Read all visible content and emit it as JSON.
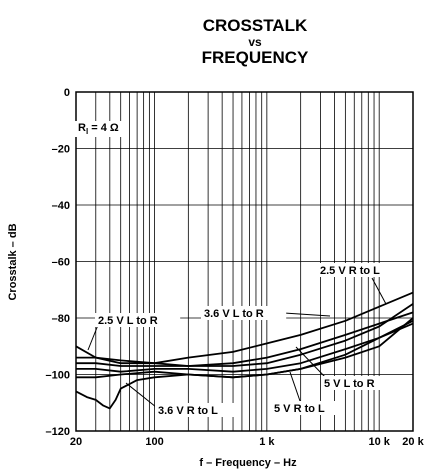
{
  "chart_data": {
    "type": "line",
    "title_lines": [
      "CROSSTALK",
      "vs",
      "FREQUENCY"
    ],
    "xlabel": "f – Frequency – Hz",
    "ylabel": "Crosstalk – dB",
    "x_scale": "log",
    "xlim": [
      20,
      20000
    ],
    "ylim": [
      -120,
      0
    ],
    "grid": true,
    "x_tick_labels": [
      {
        "value": 20,
        "label": "20"
      },
      {
        "value": 100,
        "label": "100"
      },
      {
        "value": 1000,
        "label": "1 k"
      },
      {
        "value": 10000,
        "label": "10 k"
      },
      {
        "value": 20000,
        "label": "20 k"
      }
    ],
    "y_ticks": [
      0,
      -20,
      -40,
      -60,
      -80,
      -100,
      -120
    ],
    "y_tick_labels": [
      "0",
      "–20",
      "–40",
      "–60",
      "–80",
      "–100",
      "–120"
    ],
    "annotation": {
      "main": "R",
      "sub": "l",
      "rest": " = 4 Ω"
    },
    "series": [
      {
        "name": "2.5 V L to R",
        "x": [
          20,
          30,
          50,
          100,
          200,
          500,
          1000,
          2000,
          5000,
          10000,
          20000
        ],
        "y": [
          -90,
          -94,
          -96,
          -96,
          -97,
          -96,
          -94,
          -91,
          -86,
          -82,
          -78
        ]
      },
      {
        "name": "3.6 V L to R",
        "x": [
          20,
          30,
          50,
          100,
          200,
          500,
          1000,
          2000,
          5000,
          10000,
          20000
        ],
        "y": [
          -94,
          -94,
          -95,
          -96,
          -94,
          -92,
          -89,
          -86,
          -81,
          -76,
          -71
        ]
      },
      {
        "name": "2.5 V R to L",
        "x": [
          20,
          30,
          50,
          100,
          200,
          500,
          1000,
          2000,
          5000,
          10000,
          20000
        ],
        "y": [
          -96,
          -96,
          -97,
          -97,
          -97,
          -97,
          -96,
          -93,
          -88,
          -83,
          -75
        ]
      },
      {
        "name": "5 V L to R",
        "x": [
          20,
          30,
          50,
          100,
          200,
          500,
          1000,
          2000,
          5000,
          10000,
          20000
        ],
        "y": [
          -98,
          -98,
          -99,
          -98,
          -98,
          -99,
          -98,
          -96,
          -91,
          -87,
          -81
        ]
      },
      {
        "name": "5 V R to L",
        "x": [
          20,
          30,
          50,
          100,
          200,
          500,
          1000,
          2000,
          5000,
          10000,
          20000
        ],
        "y": [
          -101,
          -101,
          -100,
          -99,
          -100,
          -101,
          -100,
          -98,
          -94,
          -90,
          -80
        ]
      },
      {
        "name": "3.6 V R to L",
        "x": [
          20,
          25,
          30,
          35,
          40,
          45,
          50,
          70,
          100,
          200,
          500,
          1000,
          2000,
          5000,
          10000,
          20000
        ],
        "y": [
          -106,
          -108,
          -109,
          -111,
          -112,
          -109,
          -105,
          -102,
          -101,
          -100,
          -101,
          -100,
          -98,
          -93,
          -87,
          -82
        ]
      }
    ]
  }
}
